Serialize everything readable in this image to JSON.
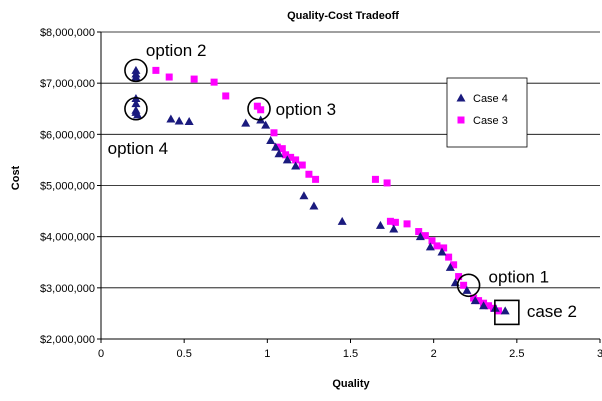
{
  "chart_data": {
    "type": "scatter",
    "title": "Quality-Cost Tradeoff",
    "xlabel": "Quality",
    "ylabel": "Cost",
    "xlim": [
      0,
      3
    ],
    "ylim": [
      2000000,
      8000000
    ],
    "x_ticks": [
      {
        "value": 0,
        "label": "0"
      },
      {
        "value": 0.5,
        "label": "0.5"
      },
      {
        "value": 1,
        "label": "1"
      },
      {
        "value": 1.5,
        "label": "1.5"
      },
      {
        "value": 2,
        "label": "2"
      },
      {
        "value": 2.5,
        "label": "2.5"
      },
      {
        "value": 3,
        "label": "3"
      }
    ],
    "y_ticks": [
      {
        "value": 2000000,
        "label": "$2,000,000"
      },
      {
        "value": 3000000,
        "label": "$3,000,000"
      },
      {
        "value": 4000000,
        "label": "$4,000,000"
      },
      {
        "value": 5000000,
        "label": "$5,000,000"
      },
      {
        "value": 6000000,
        "label": "$6,000,000"
      },
      {
        "value": 7000000,
        "label": "$7,000,000"
      },
      {
        "value": 8000000,
        "label": "$8,000,000"
      }
    ],
    "grid": "horizontal",
    "legend_position": "right",
    "series": [
      {
        "name": "Case 4",
        "marker": "triangle",
        "color": "#1a1a7e",
        "points": [
          [
            0.21,
            7.25
          ],
          [
            0.21,
            7.18
          ],
          [
            0.21,
            7.12
          ],
          [
            0.21,
            6.7
          ],
          [
            0.21,
            6.6
          ],
          [
            0.21,
            6.47
          ],
          [
            0.21,
            6.43
          ],
          [
            0.22,
            6.38
          ],
          [
            0.42,
            6.3
          ],
          [
            0.47,
            6.26
          ],
          [
            0.53,
            6.25
          ],
          [
            0.87,
            6.22
          ],
          [
            0.96,
            6.28
          ],
          [
            0.99,
            6.18
          ],
          [
            1.02,
            5.88
          ],
          [
            1.05,
            5.75
          ],
          [
            1.07,
            5.62
          ],
          [
            1.12,
            5.5
          ],
          [
            1.17,
            5.38
          ],
          [
            1.22,
            4.8
          ],
          [
            1.28,
            4.6
          ],
          [
            1.45,
            4.3
          ],
          [
            1.68,
            4.22
          ],
          [
            1.76,
            4.15
          ],
          [
            1.92,
            4.0
          ],
          [
            1.98,
            3.8
          ],
          [
            2.05,
            3.7
          ],
          [
            2.1,
            3.4
          ],
          [
            2.13,
            3.1
          ],
          [
            2.2,
            2.95
          ],
          [
            2.25,
            2.75
          ],
          [
            2.3,
            2.65
          ],
          [
            2.37,
            2.6
          ],
          [
            2.43,
            2.55
          ]
        ]
      },
      {
        "name": "Case 3",
        "marker": "square",
        "color": "#ff00ff",
        "points": [
          [
            0.33,
            7.25
          ],
          [
            0.41,
            7.12
          ],
          [
            0.56,
            7.08
          ],
          [
            0.68,
            7.02
          ],
          [
            0.75,
            6.75
          ],
          [
            0.94,
            6.55
          ],
          [
            0.96,
            6.48
          ],
          [
            1.04,
            6.03
          ],
          [
            1.06,
            5.75
          ],
          [
            1.09,
            5.72
          ],
          [
            1.11,
            5.6
          ],
          [
            1.14,
            5.55
          ],
          [
            1.17,
            5.5
          ],
          [
            1.21,
            5.4
          ],
          [
            1.25,
            5.22
          ],
          [
            1.29,
            5.12
          ],
          [
            1.65,
            5.12
          ],
          [
            1.72,
            5.05
          ],
          [
            1.74,
            4.3
          ],
          [
            1.77,
            4.28
          ],
          [
            1.84,
            4.25
          ],
          [
            1.91,
            4.1
          ],
          [
            1.95,
            4.02
          ],
          [
            1.99,
            3.92
          ],
          [
            2.02,
            3.82
          ],
          [
            2.06,
            3.78
          ],
          [
            2.09,
            3.6
          ],
          [
            2.12,
            3.45
          ],
          [
            2.15,
            3.22
          ],
          [
            2.18,
            3.05
          ],
          [
            2.24,
            2.8
          ],
          [
            2.27,
            2.75
          ],
          [
            2.3,
            2.7
          ],
          [
            2.33,
            2.65
          ],
          [
            2.36,
            2.6
          ],
          [
            2.39,
            2.55
          ]
        ]
      }
    ],
    "annotations": [
      {
        "text": "option 2",
        "shape": "circle",
        "x": 0.21,
        "y": 7.25,
        "text_x": 0.27,
        "text_y": 7.65
      },
      {
        "text": "option 3",
        "shape": "circle",
        "x": 0.95,
        "y": 6.5,
        "text_x": 1.05,
        "text_y": 6.5
      },
      {
        "text": "option 4",
        "shape": "circle",
        "x": 0.21,
        "y": 6.5,
        "text_x": 0.04,
        "text_y": 5.73
      },
      {
        "text": "option 1",
        "shape": "circle",
        "x": 2.21,
        "y": 3.05,
        "text_x": 2.33,
        "text_y": 3.22
      },
      {
        "text": "case 2",
        "shape": "square",
        "x": 2.44,
        "y": 2.52,
        "text_x": 2.56,
        "text_y": 2.55
      }
    ]
  }
}
